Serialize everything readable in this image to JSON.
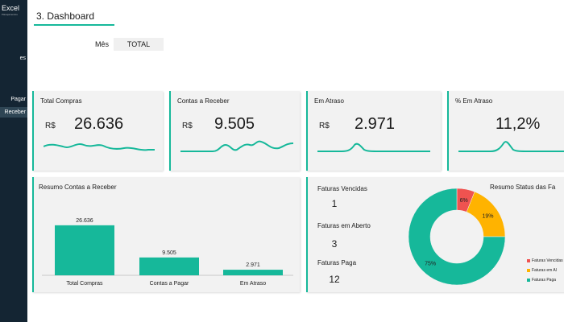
{
  "sidebar": {
    "logo": "Excel",
    "logo_sub": "Planejamentos",
    "items": [
      {
        "label": "es"
      },
      {
        "label": "Pagar"
      },
      {
        "label": "Receber"
      }
    ]
  },
  "header": {
    "title": "3. Dashboard",
    "filter_label": "Mês",
    "filter_value": "TOTAL"
  },
  "kpis": [
    {
      "title": "Total Compras",
      "currency": "R$",
      "value": "26.636"
    },
    {
      "title": "Contas a Receber",
      "currency": "R$",
      "value": "9.505"
    },
    {
      "title": "Em Atraso",
      "currency": "R$",
      "value": "2.971"
    },
    {
      "title": "% Em Atraso",
      "currency": "",
      "value": "11,2%"
    }
  ],
  "colors": {
    "accent": "#16b89a",
    "red": "#ef5350",
    "yellow": "#ffb300",
    "sidebar": "#142533",
    "card": "#f2f2f2"
  },
  "bar_section": {
    "title": "Resumo Contas a Receber"
  },
  "status_section": {
    "title": "Resumo Status das Fa",
    "items": [
      {
        "label": "Faturas Vencidas",
        "value": "1"
      },
      {
        "label": "Faturas em Aberto",
        "value": "3"
      },
      {
        "label": "Faturas Paga",
        "value": "12"
      }
    ],
    "legend": [
      "Faturas Vencidas",
      "Faturas em Al",
      "Faturas Paga"
    ]
  },
  "chart_data": [
    {
      "type": "bar",
      "title": "Resumo Contas a Receber",
      "categories": [
        "Total Compras",
        "Contas a Pagar",
        "Em Atraso"
      ],
      "values": [
        26636,
        9505,
        2971
      ],
      "labels": [
        "26.636",
        "9.505",
        "2.971"
      ],
      "ylim": [
        0,
        30000
      ],
      "color": "#16b89a"
    },
    {
      "type": "pie",
      "title": "Resumo Status das Fa",
      "categories": [
        "Faturas Vencidas",
        "Faturas em Al",
        "Faturas Paga"
      ],
      "values": [
        6,
        19,
        75
      ],
      "labels": [
        "6%",
        "19%",
        "75%"
      ],
      "colors": [
        "#ef5350",
        "#ffb300",
        "#16b89a"
      ]
    }
  ]
}
